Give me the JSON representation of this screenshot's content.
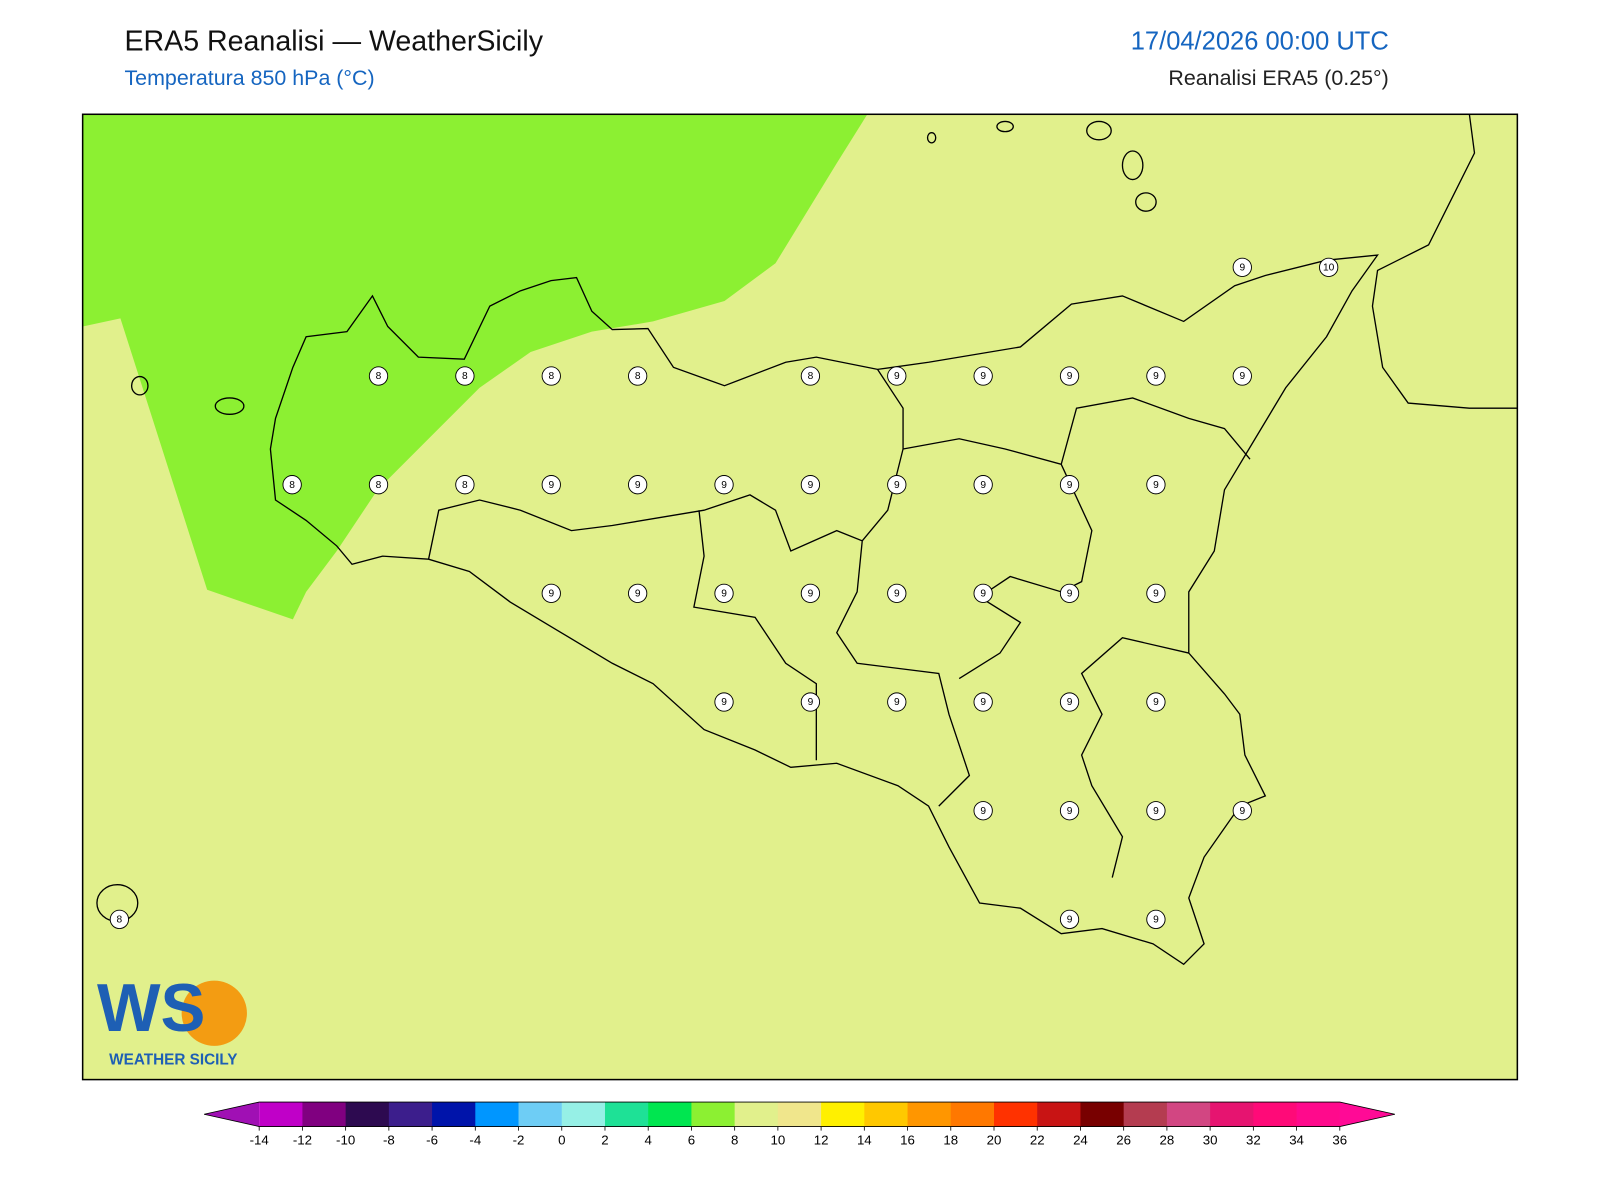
{
  "header": {
    "title": "ERA5 Reanalisi — WeatherSicily",
    "subtitle": "Temperatura 850 hPa (°C)",
    "datetime": "17/04/2026 00:00 UTC",
    "source": "Reanalisi ERA5 (0.25°)"
  },
  "map": {
    "grid_labels": [
      [
        null,
        null,
        null,
        null,
        null,
        null,
        null,
        null,
        null,
        null,
        null,
        null,
        null,
        9,
        10
      ],
      [
        null,
        null,
        null,
        8,
        8,
        8,
        8,
        null,
        8,
        9,
        9,
        9,
        9,
        9,
        null
      ],
      [
        null,
        null,
        8,
        8,
        8,
        9,
        9,
        9,
        9,
        9,
        9,
        9,
        9,
        null,
        null
      ],
      [
        null,
        null,
        null,
        null,
        null,
        9,
        9,
        9,
        9,
        9,
        9,
        9,
        9,
        null,
        null
      ],
      [
        null,
        null,
        null,
        null,
        null,
        null,
        null,
        9,
        9,
        9,
        9,
        9,
        9,
        null,
        null
      ],
      [
        null,
        null,
        null,
        null,
        null,
        null,
        null,
        null,
        null,
        null,
        9,
        9,
        9,
        9,
        null
      ],
      [
        8,
        null,
        null,
        null,
        null,
        null,
        null,
        null,
        null,
        null,
        null,
        9,
        9,
        null,
        null
      ]
    ]
  },
  "colorbar": {
    "ticks": [
      -14,
      -12,
      -10,
      -8,
      -6,
      -4,
      -2,
      0,
      2,
      4,
      6,
      8,
      10,
      12,
      14,
      16,
      18,
      20,
      22,
      24,
      26,
      28,
      30,
      32,
      34,
      36
    ],
    "colors": [
      "#a010b4",
      "#c000c8",
      "#800080",
      "#2d0a50",
      "#3c1e8c",
      "#0014aa",
      "#0096ff",
      "#6ecdf5",
      "#96f0e6",
      "#1ee196",
      "#00e650",
      "#8cf032",
      "#e1f08c",
      "#f0e68c",
      "#fff000",
      "#ffc800",
      "#ff9600",
      "#ff7800",
      "#ff3200",
      "#c81414",
      "#780000",
      "#b43c50",
      "#d24682",
      "#e61470",
      "#ff0a78",
      "#ff0a8c",
      "#ff0a96"
    ]
  },
  "logo": {
    "mark": "WS",
    "text": "WEATHER SICILY"
  }
}
